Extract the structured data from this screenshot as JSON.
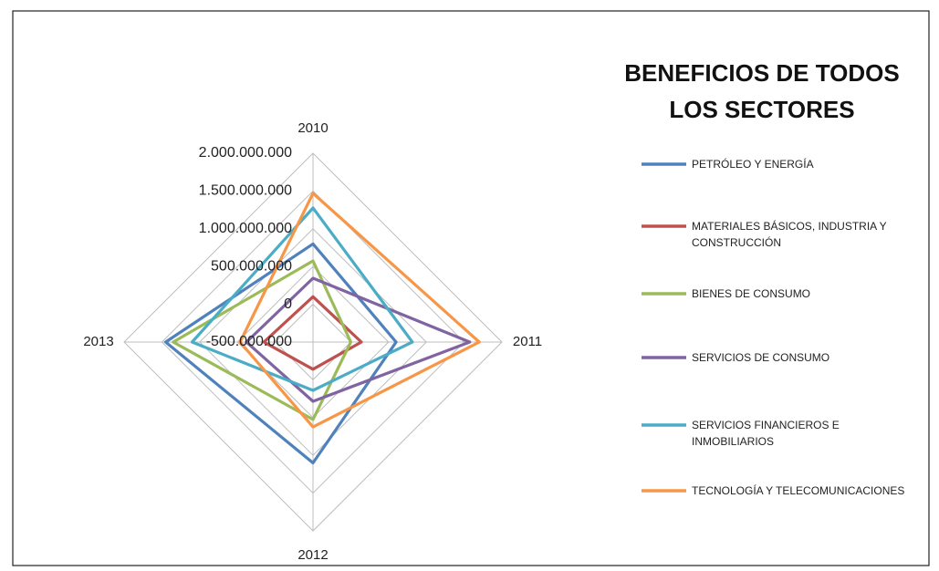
{
  "chart_data": {
    "type": "radar",
    "title": "BENEFICIOS DE TODOS LOS SECTORES",
    "categories": [
      "2010",
      "2011",
      "2012",
      "2013"
    ],
    "rlim": [
      -500000000,
      2000000000
    ],
    "rticks": [
      {
        "value": -500000000,
        "label": "-500.000.000"
      },
      0,
      {
        "value": 500000000,
        "label": "500.000.000"
      },
      {
        "value": 1000000000,
        "label": "1.000.000.000"
      },
      {
        "value": 1500000000,
        "label": "1.500.000.000"
      },
      {
        "value": 2000000000,
        "label": "2.000.000.000"
      }
    ],
    "grid": true,
    "legend": "right",
    "series": [
      {
        "name": "PETRÓLEO Y ENERGÍA",
        "color": "#4f81bd",
        "values": [
          800000000,
          600000000,
          1100000000,
          1450000000
        ]
      },
      {
        "name": "MATERIALES BÁSICOS, INDUSTRIA Y CONSTRUCCIÓN",
        "color": "#c0504d",
        "values": [
          100000000,
          140000000,
          -140000000,
          150000000
        ]
      },
      {
        "name": "BIENES DE CONSUMO",
        "color": "#9bbb59",
        "values": [
          575000000,
          0,
          525000000,
          1350000000
        ]
      },
      {
        "name": "SERVICIOS DE CONSUMO",
        "color": "#8064a2",
        "values": [
          345000000,
          1575000000,
          285000000,
          380000000
        ]
      },
      {
        "name": "SERVICIOS FINANCIEROS E INMOBILIARIOS",
        "color": "#4bacc6",
        "values": [
          1275000000,
          815000000,
          140000000,
          1100000000
        ]
      },
      {
        "name": "TECNOLOGÍA Y TELECOMUNICACIONES",
        "color": "#f79646",
        "values": [
          1470000000,
          1700000000,
          625000000,
          465000000
        ]
      }
    ]
  }
}
